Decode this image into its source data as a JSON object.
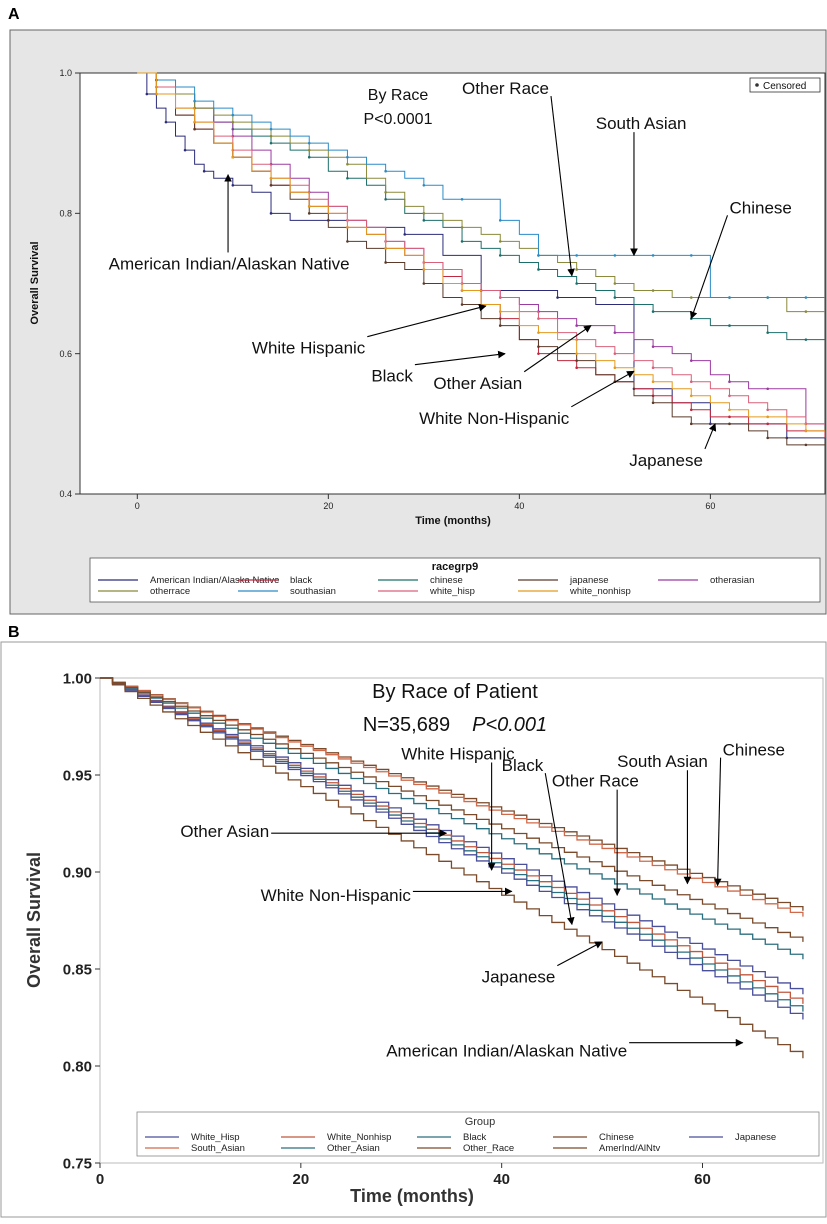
{
  "chart_data": [
    {
      "panel": "A",
      "type": "line",
      "subtype": "step (Kaplan-Meier)",
      "title": "By Race",
      "pvalue_text": "P<0.0001",
      "xlabel": "Time (months)",
      "ylabel": "Overall Survival",
      "xlim": [
        -6,
        72
      ],
      "ylim": [
        0.4,
        1.0
      ],
      "xticks": [
        0,
        20,
        40,
        60
      ],
      "yticks": [
        0.4,
        0.6,
        0.8,
        1.0
      ],
      "ytick_labels": [
        "0.4",
        "0.6",
        "0.8",
        "1.0"
      ],
      "grid": false,
      "censor_legend": "Censored",
      "legend_title": "racegrp9",
      "legend_position": "bottom",
      "series": [
        {
          "name": "American Indian/Alaska Native",
          "color": "#2b2b7a",
          "x": [
            0,
            1,
            2,
            3,
            4,
            5,
            6,
            7,
            8,
            10,
            12,
            14,
            16,
            20,
            24,
            28,
            32,
            36,
            40,
            44,
            48,
            52,
            56,
            60,
            64,
            68,
            72
          ],
          "y": [
            1.0,
            0.97,
            0.95,
            0.93,
            0.91,
            0.89,
            0.87,
            0.86,
            0.85,
            0.84,
            0.83,
            0.8,
            0.79,
            0.79,
            0.78,
            0.77,
            0.74,
            0.69,
            0.69,
            0.68,
            0.67,
            0.55,
            0.53,
            0.5,
            0.5,
            0.48,
            0.48
          ]
        },
        {
          "name": "black",
          "color": "#c0283e",
          "x": [
            0,
            2,
            4,
            6,
            8,
            10,
            12,
            14,
            16,
            18,
            20,
            22,
            24,
            26,
            28,
            30,
            32,
            34,
            36,
            38,
            40,
            42,
            44,
            46,
            48,
            50,
            52,
            54,
            56,
            58,
            60,
            62,
            64,
            66,
            68,
            70,
            72
          ],
          "y": [
            1.0,
            0.97,
            0.94,
            0.92,
            0.9,
            0.88,
            0.86,
            0.84,
            0.83,
            0.81,
            0.8,
            0.78,
            0.77,
            0.75,
            0.74,
            0.72,
            0.71,
            0.69,
            0.67,
            0.65,
            0.62,
            0.6,
            0.59,
            0.58,
            0.57,
            0.56,
            0.55,
            0.54,
            0.53,
            0.52,
            0.51,
            0.51,
            0.5,
            0.5,
            0.49,
            0.49,
            0.48
          ]
        },
        {
          "name": "chinese",
          "color": "#1b6f6b",
          "x": [
            0,
            2,
            4,
            6,
            8,
            10,
            12,
            14,
            16,
            18,
            20,
            22,
            24,
            26,
            28,
            30,
            32,
            34,
            36,
            38,
            40,
            42,
            44,
            46,
            48,
            50,
            52,
            54,
            56,
            58,
            60,
            62,
            64,
            66,
            68,
            70,
            72
          ],
          "y": [
            1.0,
            0.99,
            0.97,
            0.95,
            0.93,
            0.92,
            0.91,
            0.9,
            0.89,
            0.88,
            0.86,
            0.85,
            0.84,
            0.82,
            0.8,
            0.79,
            0.78,
            0.76,
            0.75,
            0.74,
            0.73,
            0.72,
            0.71,
            0.7,
            0.69,
            0.68,
            0.67,
            0.66,
            0.66,
            0.65,
            0.64,
            0.64,
            0.64,
            0.63,
            0.62,
            0.62,
            0.62
          ]
        },
        {
          "name": "japanese",
          "color": "#5b3a2a",
          "x": [
            0,
            2,
            4,
            6,
            8,
            10,
            12,
            14,
            16,
            18,
            20,
            22,
            24,
            26,
            28,
            30,
            32,
            34,
            36,
            38,
            40,
            42,
            44,
            46,
            48,
            50,
            52,
            54,
            56,
            58,
            60,
            62,
            64,
            66,
            68,
            70,
            72
          ],
          "y": [
            1.0,
            0.97,
            0.94,
            0.92,
            0.9,
            0.88,
            0.86,
            0.84,
            0.82,
            0.8,
            0.78,
            0.76,
            0.75,
            0.73,
            0.72,
            0.7,
            0.68,
            0.67,
            0.65,
            0.64,
            0.62,
            0.61,
            0.6,
            0.59,
            0.57,
            0.56,
            0.54,
            0.53,
            0.51,
            0.5,
            0.5,
            0.5,
            0.49,
            0.48,
            0.47,
            0.47,
            0.47
          ]
        },
        {
          "name": "otherasian",
          "color": "#9b3aa0",
          "x": [
            0,
            2,
            4,
            6,
            8,
            10,
            12,
            14,
            16,
            18,
            20,
            22,
            24,
            26,
            28,
            30,
            32,
            34,
            36,
            38,
            40,
            42,
            44,
            46,
            48,
            50,
            52,
            54,
            56,
            58,
            60,
            62,
            64,
            66,
            68,
            70,
            72
          ],
          "y": [
            1.0,
            0.99,
            0.97,
            0.95,
            0.93,
            0.91,
            0.89,
            0.87,
            0.85,
            0.83,
            0.81,
            0.79,
            0.78,
            0.76,
            0.75,
            0.73,
            0.72,
            0.7,
            0.69,
            0.68,
            0.67,
            0.66,
            0.65,
            0.64,
            0.64,
            0.63,
            0.62,
            0.61,
            0.6,
            0.59,
            0.57,
            0.56,
            0.55,
            0.55,
            0.55,
            0.5,
            0.5
          ]
        },
        {
          "name": "otherrace",
          "color": "#8a8a3a",
          "x": [
            0,
            2,
            4,
            6,
            8,
            10,
            12,
            14,
            16,
            18,
            20,
            22,
            24,
            26,
            28,
            30,
            32,
            34,
            36,
            38,
            40,
            42,
            44,
            46,
            48,
            50,
            52,
            54,
            56,
            58,
            60,
            62,
            64,
            66,
            68,
            70,
            72
          ],
          "y": [
            1.0,
            0.99,
            0.97,
            0.95,
            0.94,
            0.93,
            0.92,
            0.91,
            0.9,
            0.89,
            0.88,
            0.87,
            0.85,
            0.83,
            0.81,
            0.8,
            0.79,
            0.78,
            0.77,
            0.76,
            0.75,
            0.74,
            0.73,
            0.72,
            0.71,
            0.7,
            0.69,
            0.69,
            0.68,
            0.68,
            0.68,
            0.68,
            0.68,
            0.68,
            0.66,
            0.66,
            0.66
          ]
        },
        {
          "name": "southasian",
          "color": "#2a8cc7",
          "x": [
            0,
            2,
            4,
            6,
            8,
            10,
            12,
            14,
            16,
            18,
            20,
            22,
            24,
            26,
            28,
            30,
            32,
            34,
            36,
            38,
            40,
            42,
            44,
            46,
            48,
            50,
            52,
            54,
            56,
            58,
            60,
            62,
            64,
            66,
            68,
            70,
            72
          ],
          "y": [
            1.0,
            0.99,
            0.98,
            0.96,
            0.95,
            0.94,
            0.93,
            0.92,
            0.91,
            0.9,
            0.89,
            0.88,
            0.87,
            0.86,
            0.85,
            0.84,
            0.82,
            0.82,
            0.82,
            0.79,
            0.77,
            0.74,
            0.74,
            0.74,
            0.74,
            0.74,
            0.74,
            0.74,
            0.74,
            0.74,
            0.68,
            0.68,
            0.68,
            0.68,
            0.68,
            0.68,
            0.68
          ]
        },
        {
          "name": "white_hisp",
          "color": "#d9607a",
          "x": [
            0,
            2,
            4,
            6,
            8,
            10,
            12,
            14,
            16,
            18,
            20,
            22,
            24,
            26,
            28,
            30,
            32,
            34,
            36,
            38,
            40,
            42,
            44,
            46,
            48,
            50,
            52,
            54,
            56,
            58,
            60,
            62,
            64,
            66,
            68,
            70,
            72
          ],
          "y": [
            1.0,
            0.98,
            0.95,
            0.93,
            0.91,
            0.89,
            0.87,
            0.85,
            0.84,
            0.82,
            0.81,
            0.79,
            0.78,
            0.76,
            0.75,
            0.73,
            0.72,
            0.7,
            0.69,
            0.68,
            0.66,
            0.65,
            0.63,
            0.62,
            0.61,
            0.6,
            0.59,
            0.58,
            0.57,
            0.56,
            0.55,
            0.54,
            0.53,
            0.52,
            0.51,
            0.5,
            0.5
          ]
        },
        {
          "name": "white_nonhisp",
          "color": "#e39a1e",
          "x": [
            0,
            2,
            4,
            6,
            8,
            10,
            12,
            14,
            16,
            18,
            20,
            22,
            24,
            26,
            28,
            30,
            32,
            34,
            36,
            38,
            40,
            42,
            44,
            46,
            48,
            50,
            52,
            54,
            56,
            58,
            60,
            62,
            64,
            66,
            68,
            70,
            72
          ],
          "y": [
            1.0,
            0.97,
            0.95,
            0.93,
            0.9,
            0.88,
            0.86,
            0.85,
            0.83,
            0.81,
            0.8,
            0.78,
            0.77,
            0.75,
            0.74,
            0.72,
            0.7,
            0.69,
            0.67,
            0.66,
            0.64,
            0.63,
            0.62,
            0.6,
            0.59,
            0.58,
            0.57,
            0.56,
            0.55,
            0.54,
            0.53,
            0.52,
            0.51,
            0.51,
            0.5,
            0.49,
            0.49
          ]
        }
      ],
      "annotations": [
        {
          "text": "Other Race",
          "tx": 34,
          "ty": 0.97,
          "ax": 45.5,
          "ay": 0.711
        },
        {
          "text": "South Asian",
          "tx": 48,
          "ty": 0.92,
          "ax": 52,
          "ay": 0.74
        },
        {
          "text": "Chinese",
          "tx": 62,
          "ty": 0.8,
          "ax": 58,
          "ay": 0.65
        },
        {
          "text": "American Indian/Alaskan Native",
          "tx": -3,
          "ty": 0.72,
          "ax": 9.5,
          "ay": 0.855
        },
        {
          "text": "White Hispanic",
          "tx": 12,
          "ty": 0.6,
          "ax": 36.5,
          "ay": 0.668
        },
        {
          "text": "Black",
          "tx": 24.5,
          "ty": 0.56,
          "ax": 38.5,
          "ay": 0.6
        },
        {
          "text": "Other Asian",
          "tx": 31,
          "ty": 0.55,
          "ax": 47.5,
          "ay": 0.64
        },
        {
          "text": "White Non-Hispanic",
          "tx": 29.5,
          "ty": 0.5,
          "ax": 52,
          "ay": 0.575
        },
        {
          "text": "Japanese",
          "tx": 51.5,
          "ty": 0.44,
          "ax": 60.5,
          "ay": 0.5
        }
      ]
    },
    {
      "panel": "B",
      "type": "line",
      "subtype": "step (predicted survival)",
      "title": "By Race of Patient",
      "subtitle_prefix": "N=35,689",
      "pvalue_text": "P<0.001",
      "xlabel": "Time (months)",
      "ylabel": "Overall Survival",
      "xlim": [
        0,
        72
      ],
      "ylim": [
        0.75,
        1.0
      ],
      "xticks": [
        0,
        20,
        40,
        60
      ],
      "yticks": [
        0.75,
        0.8,
        0.85,
        0.9,
        0.95,
        1.0
      ],
      "ytick_labels": [
        "0.75",
        "0.80",
        "0.85",
        "0.90",
        "0.95",
        "1.00"
      ],
      "grid": false,
      "legend_title": "Group",
      "legend_position": "bottom",
      "series": [
        {
          "name": "White_Hisp",
          "color": "#4a4f9a",
          "x": [
            0,
            70
          ],
          "y": [
            1.0,
            0.837
          ]
        },
        {
          "name": "White_Nonhisp",
          "color": "#c0583e",
          "x": [
            0,
            70
          ],
          "y": [
            1.0,
            0.832
          ]
        },
        {
          "name": "Black",
          "color": "#2a6f7f",
          "x": [
            0,
            70
          ],
          "y": [
            1.0,
            0.828
          ]
        },
        {
          "name": "Chinese",
          "color": "#7a4a2a",
          "x": [
            0,
            70
          ],
          "y": [
            1.0,
            0.88
          ]
        },
        {
          "name": "Japanese",
          "color": "#4a4f9a",
          "x": [
            0,
            70
          ],
          "y": [
            1.0,
            0.824
          ]
        },
        {
          "name": "South_Asian",
          "color": "#d06a4a",
          "x": [
            0,
            70
          ],
          "y": [
            1.0,
            0.877
          ]
        },
        {
          "name": "Other_Asian",
          "color": "#2a6f7f",
          "x": [
            0,
            70
          ],
          "y": [
            1.0,
            0.855
          ]
        },
        {
          "name": "Other_Race",
          "color": "#7a4a2a",
          "x": [
            0,
            70
          ],
          "y": [
            1.0,
            0.864
          ]
        },
        {
          "name": "AmerInd/AlNtv",
          "color": "#7a4a2a",
          "x": [
            0,
            70
          ],
          "y": [
            1.0,
            0.804
          ]
        }
      ],
      "annotations": [
        {
          "text": "White Hispanic",
          "tx": 30,
          "ty": 0.958,
          "ax": 39,
          "ay": 0.901
        },
        {
          "text": "Black",
          "tx": 40,
          "ty": 0.952,
          "ax": 47,
          "ay": 0.873
        },
        {
          "text": "Chinese",
          "tx": 62,
          "ty": 0.96,
          "ax": 61.5,
          "ay": 0.893
        },
        {
          "text": "South Asian",
          "tx": 51.5,
          "ty": 0.954,
          "ax": 58.5,
          "ay": 0.894
        },
        {
          "text": "Other Race",
          "tx": 45,
          "ty": 0.944,
          "ax": 51.5,
          "ay": 0.888
        },
        {
          "text": "Other Asian",
          "tx": 8,
          "ty": 0.918,
          "ax": 34.5,
          "ay": 0.92
        },
        {
          "text": "White Non-Hispanic",
          "tx": 16,
          "ty": 0.885,
          "ax": 41,
          "ay": 0.89
        },
        {
          "text": "Japanese",
          "tx": 38,
          "ty": 0.843,
          "ax": 50,
          "ay": 0.864
        },
        {
          "text": "American Indian/Alaskan Native",
          "tx": 28.5,
          "ty": 0.805,
          "ax": 64,
          "ay": 0.812
        }
      ]
    }
  ]
}
